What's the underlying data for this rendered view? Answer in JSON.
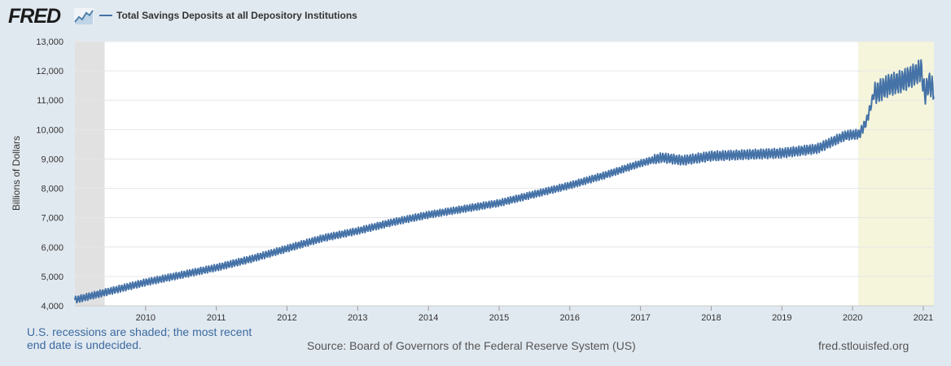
{
  "header": {
    "logo_text": "FRED",
    "logo_icon": "line-chart-icon",
    "legend_label": "Total Savings Deposits at all Depository Institutions"
  },
  "footer": {
    "note": "U.S. recessions are shaded; the most recent end date is undecided.",
    "source": "Source: Board of Governors of the Federal Reserve System (US)",
    "url": "fred.stlouisfed.org"
  },
  "colors": {
    "background": "#e1e9f0",
    "plot_bg": "#ffffff",
    "line": "#4572a7",
    "recession_gray": "#e1e1e1",
    "recession_yellow": "#f5f5dc",
    "gridline": "#e6e6e6"
  },
  "chart_data": {
    "type": "line",
    "title": "Total Savings Deposits at all Depository Institutions",
    "xlabel": "",
    "ylabel": "Billions of Dollars",
    "ylim": [
      4000,
      13000
    ],
    "xlim": [
      2009.0,
      2021.15
    ],
    "yticks": [
      4000,
      5000,
      6000,
      7000,
      8000,
      9000,
      10000,
      11000,
      12000,
      13000
    ],
    "ytick_labels": [
      "4,000",
      "5,000",
      "6,000",
      "7,000",
      "8,000",
      "9,000",
      "10,000",
      "11,000",
      "12,000",
      "13,000"
    ],
    "xticks": [
      2010,
      2011,
      2012,
      2013,
      2014,
      2015,
      2016,
      2017,
      2018,
      2019,
      2020,
      2021
    ],
    "xtick_labels": [
      "2010",
      "2011",
      "2012",
      "2013",
      "2014",
      "2015",
      "2016",
      "2017",
      "2018",
      "2019",
      "2020",
      "2021"
    ],
    "grid": true,
    "recessions": [
      {
        "start": 2009.0,
        "end": 2009.42,
        "shade": "gray"
      },
      {
        "start": 2020.08,
        "end": 2021.15,
        "shade": "yellow"
      }
    ],
    "series": [
      {
        "name": "Total Savings Deposits at all Depository Institutions",
        "x": [
          2009.0,
          2009.5,
          2010.0,
          2010.5,
          2011.0,
          2011.5,
          2012.0,
          2012.5,
          2013.0,
          2013.5,
          2014.0,
          2014.5,
          2015.0,
          2015.5,
          2016.0,
          2016.5,
          2017.0,
          2017.3,
          2017.6,
          2018.0,
          2018.5,
          2019.0,
          2019.5,
          2019.9,
          2020.1,
          2020.2,
          2020.3,
          2020.5,
          2020.7,
          2020.9,
          2020.97,
          2021.02,
          2021.08,
          2021.15
        ],
        "values": [
          4200,
          4500,
          4800,
          5050,
          5300,
          5600,
          5950,
          6300,
          6550,
          6850,
          7100,
          7300,
          7500,
          7800,
          8100,
          8450,
          8850,
          9050,
          8950,
          9100,
          9150,
          9200,
          9350,
          9800,
          9850,
          10300,
          11200,
          11500,
          11650,
          11900,
          12050,
          11200,
          11600,
          11350
        ],
        "seasonal_amplitude": 120,
        "wiggles_per_year": 26
      }
    ]
  }
}
